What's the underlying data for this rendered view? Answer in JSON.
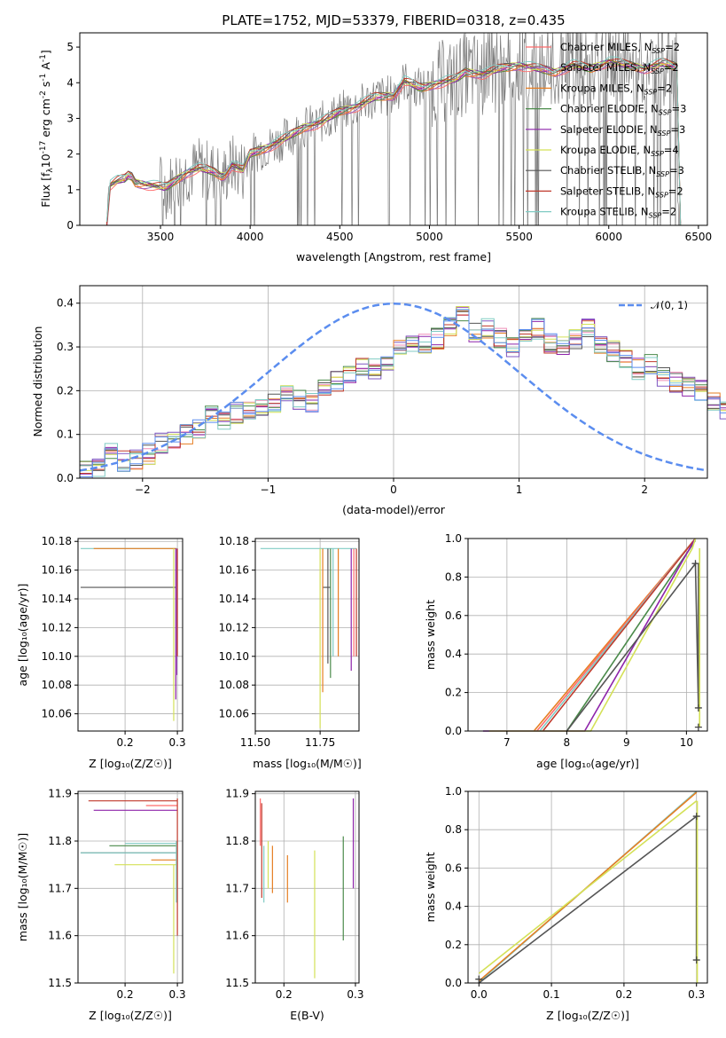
{
  "colors": {
    "cm": "#ff6b6b",
    "sm": "#9b59b6",
    "km": "#e67e22",
    "ce": "#4a8a4a",
    "se": "#8e24aa",
    "ke": "#d4e157",
    "cs": "#555555",
    "ss": "#c0392b",
    "ks": "#80cbc4",
    "hist": [
      "#ef8fb9",
      "#7e57c2",
      "#e67e22",
      "#4a8a4a",
      "#8e24aa",
      "#d4e157",
      "#555555",
      "#c0392b",
      "#80cbc4",
      "#5b8def"
    ],
    "spectrum": "#7a7a7a",
    "normal": "#5b8def"
  },
  "chart_data": [
    {
      "id": "spectrum",
      "type": "line",
      "title": "PLATE=1752, MJD=53379, FIBERID=0318, z=0.435",
      "xlabel": "wavelength [Angstrom, rest frame]",
      "ylabel_parts": [
        "Flux [f",
        "λ",
        "10",
        "-17",
        " erg cm",
        "-2",
        " s",
        "-1",
        " A",
        "-1",
        "]"
      ],
      "xlim": [
        3050,
        6550
      ],
      "ylim": [
        0,
        5.4
      ],
      "xticks": [
        "3500",
        "4000",
        "4500",
        "5000",
        "5500",
        "6000",
        "6500"
      ],
      "xtick_values": [
        3500,
        4000,
        4500,
        5000,
        5500,
        6000,
        6500
      ],
      "yticks": [
        "0",
        "1",
        "2",
        "3",
        "4",
        "5"
      ],
      "ytick_values": [
        0,
        1,
        2,
        3,
        4,
        5
      ],
      "legend_position": "top-right",
      "legend": [
        {
          "name": "Chabrier MILES, N",
          "sub": "SSP",
          "tail": "=2",
          "ckey": "cm"
        },
        {
          "name": "Salpeter MILES, N",
          "sub": "SSP",
          "tail": "=2",
          "ckey": "sm"
        },
        {
          "name": "Kroupa MILES, N",
          "sub": "SSP",
          "tail": "=2",
          "ckey": "km"
        },
        {
          "name": "Chabrier ELODIE, N",
          "sub": "SSP",
          "tail": "=3",
          "ckey": "ce"
        },
        {
          "name": "Salpeter ELODIE, N",
          "sub": "SSP",
          "tail": "=3",
          "ckey": "se"
        },
        {
          "name": "Kroupa ELODIE, N",
          "sub": "SSP",
          "tail": "=4",
          "ckey": "ke"
        },
        {
          "name": "Chabrier STELIB, N",
          "sub": "SSP",
          "tail": "=3",
          "ckey": "cs"
        },
        {
          "name": "Salpeter STELIB, N",
          "sub": "SSP",
          "tail": "=2",
          "ckey": "ss"
        },
        {
          "name": "Kroupa STELIB, N",
          "sub": "SSP",
          "tail": "=2",
          "ckey": "ks"
        }
      ],
      "model_points": [
        [
          3200,
          0
        ],
        [
          3210,
          1.1
        ],
        [
          3260,
          1.25
        ],
        [
          3300,
          1.3
        ],
        [
          3330,
          1.45
        ],
        [
          3360,
          1.2
        ],
        [
          3420,
          1.15
        ],
        [
          3480,
          1.1
        ],
        [
          3530,
          1.05
        ],
        [
          3580,
          1.25
        ],
        [
          3650,
          1.5
        ],
        [
          3720,
          1.6
        ],
        [
          3800,
          1.5
        ],
        [
          3850,
          1.35
        ],
        [
          3900,
          1.7
        ],
        [
          3960,
          1.55
        ],
        [
          4000,
          2.0
        ],
        [
          4100,
          2.2
        ],
        [
          4200,
          2.45
        ],
        [
          4300,
          2.75
        ],
        [
          4400,
          2.9
        ],
        [
          4500,
          3.2
        ],
        [
          4600,
          3.35
        ],
        [
          4700,
          3.6
        ],
        [
          4800,
          3.65
        ],
        [
          4860,
          4.05
        ],
        [
          4950,
          3.85
        ],
        [
          5050,
          4.0
        ],
        [
          5150,
          4.1
        ],
        [
          5200,
          4.3
        ],
        [
          5300,
          4.25
        ],
        [
          5400,
          4.4
        ],
        [
          5500,
          4.5
        ],
        [
          5600,
          4.4
        ],
        [
          5700,
          4.3
        ],
        [
          5800,
          4.5
        ],
        [
          5900,
          4.4
        ],
        [
          6000,
          4.6
        ],
        [
          6100,
          4.5
        ],
        [
          6200,
          4.4
        ],
        [
          6300,
          4.55
        ],
        [
          6380,
          4.45
        ]
      ]
    },
    {
      "id": "hist",
      "type": "histogram",
      "xlabel": "(data-model)/error",
      "ylabel": "Normed distribution",
      "xlim": [
        -2.5,
        2.5
      ],
      "ylim": [
        0,
        0.44
      ],
      "xticks": [
        "−2",
        "−1",
        "0",
        "1",
        "2"
      ],
      "xtick_values": [
        -2,
        -1,
        0,
        1,
        2
      ],
      "yticks": [
        "0.0",
        "0.1",
        "0.2",
        "0.3",
        "0.4"
      ],
      "ytick_values": [
        0,
        0.1,
        0.2,
        0.3,
        0.4
      ],
      "legend_position": "top-right",
      "normal_label": "𝒩(0, 1)",
      "bin_width": 0.1,
      "base_heights": [
        0.015,
        0.02,
        0.06,
        0.04,
        0.04,
        0.055,
        0.08,
        0.09,
        0.1,
        0.11,
        0.14,
        0.13,
        0.15,
        0.15,
        0.16,
        0.17,
        0.19,
        0.18,
        0.17,
        0.2,
        0.22,
        0.24,
        0.26,
        0.25,
        0.27,
        0.29,
        0.3,
        0.31,
        0.32,
        0.35,
        0.37,
        0.33,
        0.34,
        0.32,
        0.3,
        0.33,
        0.34,
        0.31,
        0.3,
        0.32,
        0.34,
        0.3,
        0.29,
        0.27,
        0.25,
        0.26,
        0.23,
        0.22,
        0.21,
        0.2,
        0.18,
        0.16,
        0.15,
        0.14,
        0.13,
        0.12,
        0.11,
        0.1,
        0.09,
        0.08
      ]
    },
    {
      "id": "ageZ",
      "type": "scatter",
      "xlabel": "Z [log₁₀(Z/Z☉)]",
      "ylabel": "age  [log₁₀(age/yr)]",
      "xlim": [
        0.11,
        0.31
      ],
      "ylim": [
        10.048,
        10.182
      ],
      "xticks": [
        "0.2",
        "0.3"
      ],
      "xtick_values": [
        0.2,
        0.3
      ],
      "yticks": [
        "10.06",
        "10.08",
        "10.10",
        "10.12",
        "10.14",
        "10.16",
        "10.18"
      ],
      "ytick_values": [
        10.06,
        10.08,
        10.1,
        10.12,
        10.14,
        10.16,
        10.18
      ],
      "hsegs": [
        {
          "y": 10.175,
          "x1": 0.115,
          "x2": 0.3,
          "ckey": "ks"
        },
        {
          "y": 10.175,
          "x1": 0.14,
          "x2": 0.298,
          "ckey": "km"
        },
        {
          "y": 10.148,
          "x1": 0.115,
          "x2": 0.3,
          "ckey": "cs"
        }
      ],
      "vsegs": [
        {
          "x": 0.293,
          "y1": 10.055,
          "y2": 10.175,
          "ckey": "ke"
        },
        {
          "x": 0.297,
          "y1": 10.07,
          "y2": 10.175,
          "ckey": "se"
        },
        {
          "x": 0.299,
          "y1": 10.087,
          "y2": 10.175,
          "ckey": "sm"
        },
        {
          "x": 0.3,
          "y1": 10.1,
          "y2": 10.175,
          "ckey": "ss"
        }
      ]
    },
    {
      "id": "ageM",
      "type": "scatter",
      "xlabel": "mass [log₁₀(M/M☉)]",
      "ylabel": "",
      "xlim": [
        11.5,
        11.9
      ],
      "ylim": [
        10.048,
        10.182
      ],
      "xticks": [
        "11.50",
        "11.75"
      ],
      "xtick_values": [
        11.5,
        11.75
      ],
      "yticks": [
        "10.06",
        "10.08",
        "10.10",
        "10.12",
        "10.14",
        "10.16",
        "10.18"
      ],
      "ytick_values": [
        10.06,
        10.08,
        10.1,
        10.12,
        10.14,
        10.16,
        10.18
      ],
      "hsegs": [
        {
          "y": 10.175,
          "x1": 11.52,
          "x2": 11.89,
          "ckey": "ks"
        },
        {
          "y": 10.148,
          "x1": 11.76,
          "x2": 11.79,
          "ckey": "cs"
        }
      ],
      "vsegs": [
        {
          "x": 11.75,
          "y1": 10.05,
          "y2": 10.175,
          "ckey": "ke"
        },
        {
          "x": 11.76,
          "y1": 10.075,
          "y2": 10.175,
          "ckey": "km"
        },
        {
          "x": 11.78,
          "y1": 10.095,
          "y2": 10.175,
          "ckey": "cs"
        },
        {
          "x": 11.79,
          "y1": 10.085,
          "y2": 10.175,
          "ckey": "ce"
        },
        {
          "x": 11.8,
          "y1": 10.1,
          "y2": 10.175,
          "ckey": "ks"
        },
        {
          "x": 11.82,
          "y1": 10.1,
          "y2": 10.175,
          "ckey": "km"
        },
        {
          "x": 11.87,
          "y1": 10.09,
          "y2": 10.175,
          "ckey": "se"
        },
        {
          "x": 11.88,
          "y1": 10.1,
          "y2": 10.175,
          "ckey": "cm"
        },
        {
          "x": 11.89,
          "y1": 10.1,
          "y2": 10.175,
          "ckey": "ss"
        }
      ]
    },
    {
      "id": "mwAge",
      "type": "line",
      "xlabel": "age  [log₁₀(age/yr)]",
      "ylabel": "mass weight",
      "xlim": [
        6.35,
        10.35
      ],
      "ylim": [
        0,
        1
      ],
      "xticks": [
        "7",
        "8",
        "9",
        "10"
      ],
      "xtick_values": [
        7,
        8,
        9,
        10
      ],
      "yticks": [
        "0.0",
        "0.2",
        "0.4",
        "0.6",
        "0.8",
        "1.0"
      ],
      "ytick_values": [
        0,
        0.2,
        0.4,
        0.6,
        0.8,
        1.0
      ],
      "series": [
        {
          "ckey": "km",
          "pts": [
            [
              7.45,
              0
            ],
            [
              10.15,
              1
            ]
          ]
        },
        {
          "ckey": "cm",
          "pts": [
            [
              7.5,
              0
            ],
            [
              10.15,
              1
            ]
          ]
        },
        {
          "ckey": "ks",
          "pts": [
            [
              7.55,
              0
            ],
            [
              10.15,
              1
            ]
          ]
        },
        {
          "ckey": "ss",
          "pts": [
            [
              7.6,
              0
            ],
            [
              10.15,
              1
            ]
          ]
        },
        {
          "ckey": "ce",
          "pts": [
            [
              8.0,
              0
            ],
            [
              10.15,
              0.99
            ]
          ]
        },
        {
          "ckey": "se",
          "pts": [
            [
              6.6,
              0
            ],
            [
              8.3,
              0
            ],
            [
              10.15,
              1
            ]
          ]
        },
        {
          "ckey": "ke",
          "pts": [
            [
              6.7,
              0
            ],
            [
              8.4,
              0
            ],
            [
              10.1,
              0.95
            ],
            [
              10.15,
              1
            ]
          ]
        },
        {
          "ckey": "cs",
          "pts": [
            [
              8.0,
              0
            ],
            [
              10.15,
              0.87
            ],
            [
              10.2,
              0.12
            ]
          ]
        }
      ],
      "drops": [
        {
          "x": 10.2,
          "y1": 0.87,
          "y2": 0.12,
          "ckey": "cs"
        },
        {
          "x": 10.22,
          "y1": 0.95,
          "y2": 0.02,
          "ckey": "ke"
        }
      ],
      "markers": [
        [
          10.15,
          0.87
        ],
        [
          10.2,
          0.12
        ],
        [
          10.2,
          0.02
        ]
      ]
    },
    {
      "id": "massZ",
      "type": "scatter",
      "xlabel": "Z [log₁₀(Z/Z☉)]",
      "ylabel": "mass [log₁₀(M/M☉)]",
      "xlim": [
        0.11,
        0.31
      ],
      "ylim": [
        11.5,
        11.905
      ],
      "xticks": [
        "0.2",
        "0.3"
      ],
      "xtick_values": [
        0.2,
        0.3
      ],
      "yticks": [
        "11.5",
        "11.6",
        "11.7",
        "11.8",
        "11.9"
      ],
      "ytick_values": [
        11.5,
        11.6,
        11.7,
        11.8,
        11.9
      ],
      "hsegs": [
        {
          "y": 11.885,
          "x1": 0.13,
          "x2": 0.3,
          "ckey": "ss"
        },
        {
          "y": 11.875,
          "x1": 0.24,
          "x2": 0.3,
          "ckey": "cm"
        },
        {
          "y": 11.865,
          "x1": 0.14,
          "x2": 0.3,
          "ckey": "se"
        },
        {
          "y": 11.795,
          "x1": 0.2,
          "x2": 0.3,
          "ckey": "ks"
        },
        {
          "y": 11.79,
          "x1": 0.17,
          "x2": 0.3,
          "ckey": "ce"
        },
        {
          "y": 11.775,
          "x1": 0.115,
          "x2": 0.3,
          "ckey": "cs"
        },
        {
          "y": 11.775,
          "x1": 0.115,
          "x2": 0.3,
          "ckey": "ks"
        },
        {
          "y": 11.76,
          "x1": 0.25,
          "x2": 0.3,
          "ckey": "km"
        },
        {
          "y": 11.75,
          "x1": 0.18,
          "x2": 0.3,
          "ckey": "ke"
        }
      ],
      "vsegs": [
        {
          "x": 0.293,
          "y1": 11.52,
          "y2": 11.75,
          "ckey": "ke"
        },
        {
          "x": 0.298,
          "y1": 11.67,
          "y2": 11.8,
          "ckey": "ks"
        },
        {
          "x": 0.3,
          "y1": 11.6,
          "y2": 11.89,
          "ckey": "ss"
        }
      ]
    },
    {
      "id": "massEBV",
      "type": "scatter",
      "xlabel": "E(B-V)",
      "ylabel": "",
      "xlim": [
        0.16,
        0.305
      ],
      "ylim": [
        11.5,
        11.905
      ],
      "xticks": [
        "0.2",
        "0.3"
      ],
      "xtick_values": [
        0.2,
        0.3
      ],
      "yticks": [
        "11.5",
        "11.6",
        "11.7",
        "11.8",
        "11.9"
      ],
      "ytick_values": [
        11.5,
        11.6,
        11.7,
        11.8,
        11.9
      ],
      "vsegs": [
        {
          "x": 0.167,
          "y1": 11.79,
          "y2": 11.89,
          "ckey": "cm"
        },
        {
          "x": 0.169,
          "y1": 11.68,
          "y2": 11.88,
          "ckey": "ss"
        },
        {
          "x": 0.172,
          "y1": 11.67,
          "y2": 11.79,
          "ckey": "ks"
        },
        {
          "x": 0.178,
          "y1": 11.7,
          "y2": 11.8,
          "ckey": "hist5"
        },
        {
          "x": 0.184,
          "y1": 11.69,
          "y2": 11.79,
          "ckey": "km"
        },
        {
          "x": 0.205,
          "y1": 11.67,
          "y2": 11.77,
          "ckey": "km"
        },
        {
          "x": 0.243,
          "y1": 11.51,
          "y2": 11.78,
          "ckey": "ke"
        },
        {
          "x": 0.283,
          "y1": 11.59,
          "y2": 11.81,
          "ckey": "ce"
        },
        {
          "x": 0.297,
          "y1": 11.7,
          "y2": 11.89,
          "ckey": "se"
        }
      ]
    },
    {
      "id": "mwZ",
      "type": "line",
      "xlabel": "Z [log₁₀(Z/Z☉)]",
      "ylabel": "mass weight",
      "xlim": [
        -0.015,
        0.315
      ],
      "ylim": [
        0,
        1
      ],
      "xticks": [
        "0.0",
        "0.1",
        "0.2",
        "0.3"
      ],
      "xtick_values": [
        0,
        0.1,
        0.2,
        0.3
      ],
      "yticks": [
        "0.0",
        "0.2",
        "0.4",
        "0.6",
        "0.8",
        "1.0"
      ],
      "ytick_values": [
        0,
        0.2,
        0.4,
        0.6,
        0.8,
        1.0
      ],
      "series": [
        {
          "ckey": "ks",
          "pts": [
            [
              0,
              0.005
            ],
            [
              0.3,
              1
            ]
          ]
        },
        {
          "ckey": "km",
          "pts": [
            [
              0,
              0.01
            ],
            [
              0.3,
              0.995
            ]
          ]
        },
        {
          "ckey": "ke",
          "pts": [
            [
              0,
              0.05
            ],
            [
              0.3,
              0.95
            ]
          ]
        },
        {
          "ckey": "cs",
          "pts": [
            [
              0,
              0
            ],
            [
              0.3,
              0.87
            ],
            [
              0.3,
              0.12
            ]
          ]
        }
      ],
      "drops": [
        {
          "x": 0.3,
          "y1": 0.87,
          "y2": 0.12,
          "ckey": "cs"
        },
        {
          "x": 0.301,
          "y1": 0.95,
          "y2": 0.0,
          "ckey": "ke"
        }
      ],
      "markers": [
        [
          0,
          0.02
        ],
        [
          0.3,
          0.87
        ],
        [
          0.3,
          0.12
        ]
      ]
    }
  ]
}
